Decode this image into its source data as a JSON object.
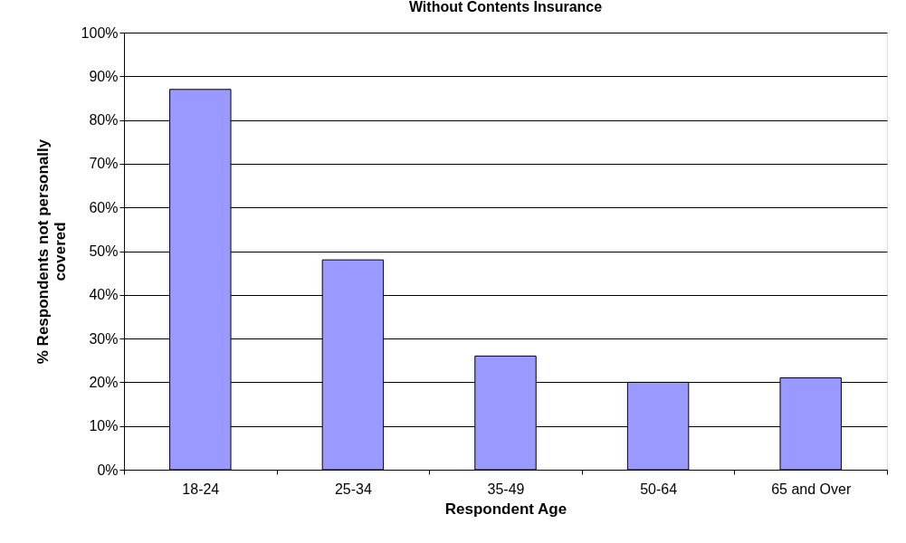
{
  "chart_data": {
    "type": "bar",
    "title": "Without Contents Insurance",
    "xlabel": "Respondent Age",
    "ylabel": "% Respondents not personally covered",
    "categories": [
      "18-24",
      "25-34",
      "35-49",
      "50-64",
      "65 and Over"
    ],
    "values": [
      87,
      48,
      26,
      20,
      21
    ],
    "color": "#9999ff",
    "ylim": [
      0,
      100
    ],
    "yticks": [
      {
        "value": 0,
        "label": "0%"
      },
      {
        "value": 10,
        "label": "10%"
      },
      {
        "value": 20,
        "label": "20%"
      },
      {
        "value": 30,
        "label": "30%"
      },
      {
        "value": 40,
        "label": "40%"
      },
      {
        "value": 50,
        "label": "50%"
      },
      {
        "value": 60,
        "label": "60%"
      },
      {
        "value": 70,
        "label": "70%"
      },
      {
        "value": 80,
        "label": "80%"
      },
      {
        "value": 90,
        "label": "90%"
      },
      {
        "value": 100,
        "label": "100%"
      }
    ],
    "grid": "y"
  }
}
